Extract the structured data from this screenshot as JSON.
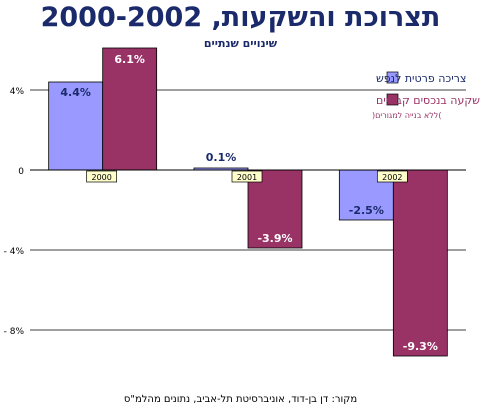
{
  "title": "תצרוכת והשקעות, 2000-2002",
  "subtitle": "שינויים שנתיים",
  "source": "מקור: דן בן-דוד, אוניברסיטת תל-אביב, נתונים מהלמ\"ס",
  "colors": {
    "series1": "#9999ff",
    "series2": "#993366",
    "title": "#1b2a6b",
    "label_box": "#ffffcc"
  },
  "chart_data": {
    "type": "bar",
    "title": "תצרוכת והשקעות, 2000-2002",
    "subtitle": "שינויים שנתיים",
    "categories": [
      "2000",
      "2001",
      "2002"
    ],
    "series": [
      {
        "name": "צריכה פרטית לנפש",
        "values": [
          4.4,
          0.1,
          -2.5
        ],
        "labels": [
          "4.4%",
          "0.1%",
          "-2.5%"
        ],
        "color": "#9999ff"
      },
      {
        "name": "השקעה בנכסים קבועים",
        "note": ")ללא בנייה למגורים(",
        "values": [
          6.1,
          -3.9,
          -9.3
        ],
        "labels": [
          "6.1%",
          "-3.9%",
          "-9.3%"
        ],
        "color": "#993366"
      }
    ],
    "ylim": [
      -10,
      6.1
    ],
    "yticks": [
      4,
      0,
      -4,
      -8
    ],
    "ytick_labels": [
      "4%",
      "0",
      "- 4%",
      "- 8%"
    ],
    "grid": true,
    "legend_position": "top-right"
  }
}
